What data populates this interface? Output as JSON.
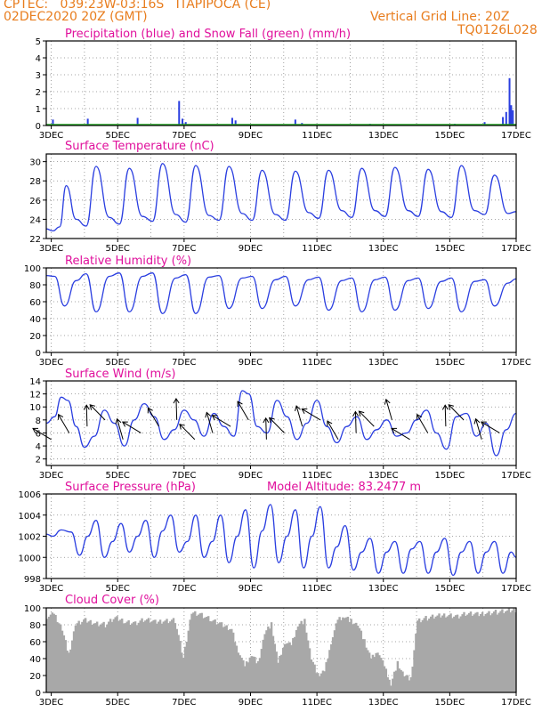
{
  "header": {
    "line1": "CPTEC:   039:23W-03:16S   ITAPIPOCA (CE)",
    "line2": "02DEC2020 20Z (GMT)",
    "grid_note": "Vertical Grid Line: 20Z",
    "code": "TQ0126L028"
  },
  "colors": {
    "header": "#e87d1e",
    "title": "#e0109c",
    "line": "#2a3ee0",
    "cloud": "#a8a8a8",
    "snow": "#22aa22"
  },
  "chart_data": [
    {
      "id": "precip",
      "type": "bar",
      "title": "Precipitation (blue) and Snow Fall (green) (mm/h)",
      "x_labels": [
        "3DEC",
        "5DEC",
        "7DEC",
        "9DEC",
        "11DEC",
        "13DEC",
        "15DEC",
        "17DEC"
      ],
      "x_range_days": [
        2.85,
        17.0
      ],
      "ylim": [
        0,
        5
      ],
      "yticks": [
        0,
        1,
        2,
        3,
        4,
        5
      ],
      "x": [
        3.05,
        4.1,
        5.6,
        6.85,
        6.95,
        7.05,
        8.45,
        8.55,
        10.35,
        10.55,
        12.6,
        15.15,
        16.05,
        16.6,
        16.7,
        16.8,
        16.85,
        16.9
      ],
      "values": [
        0.35,
        0.4,
        0.45,
        1.45,
        0.4,
        0.2,
        0.45,
        0.3,
        0.35,
        0.15,
        0.1,
        0.1,
        0.2,
        0.5,
        0.8,
        2.8,
        1.2,
        0.9
      ]
    },
    {
      "id": "temp",
      "type": "line",
      "title": "Surface Temperature (nC)",
      "x_labels": [
        "3DEC",
        "5DEC",
        "7DEC",
        "9DEC",
        "11DEC",
        "13DEC",
        "15DEC",
        "17DEC"
      ],
      "ylim": [
        22,
        30.8
      ],
      "yticks": [
        22,
        24,
        26,
        28,
        30
      ],
      "x": [
        2.85,
        3.05,
        3.25,
        3.45,
        3.75,
        4.05,
        4.35,
        4.75,
        5.05,
        5.35,
        5.75,
        6.05,
        6.35,
        6.75,
        7.05,
        7.35,
        7.75,
        8.05,
        8.35,
        8.75,
        9.05,
        9.35,
        9.75,
        10.05,
        10.35,
        10.75,
        11.05,
        11.35,
        11.75,
        12.05,
        12.35,
        12.75,
        13.05,
        13.35,
        13.75,
        14.05,
        14.35,
        14.75,
        15.05,
        15.35,
        15.75,
        16.05,
        16.35,
        16.75,
        17.0
      ],
      "values": [
        23.0,
        22.8,
        23.2,
        27.5,
        24.0,
        23.3,
        29.5,
        24.2,
        23.5,
        29.3,
        24.3,
        23.8,
        29.8,
        24.5,
        23.7,
        29.6,
        24.4,
        23.9,
        29.5,
        24.6,
        23.9,
        29.1,
        24.5,
        23.9,
        29.0,
        24.7,
        24.1,
        29.1,
        24.9,
        24.2,
        29.3,
        24.9,
        24.3,
        29.4,
        24.9,
        24.3,
        29.2,
        24.8,
        24.2,
        29.6,
        24.9,
        24.5,
        28.6,
        24.6,
        24.8
      ]
    },
    {
      "id": "rh",
      "type": "line",
      "title": "Relative Humidity (%)",
      "x_labels": [
        "3DEC",
        "5DEC",
        "7DEC",
        "9DEC",
        "11DEC",
        "13DEC",
        "15DEC",
        "17DEC"
      ],
      "ylim": [
        0,
        100
      ],
      "yticks": [
        0,
        20,
        40,
        60,
        80,
        100
      ],
      "x": [
        2.85,
        3.1,
        3.4,
        3.75,
        4.05,
        4.35,
        4.75,
        5.05,
        5.35,
        5.75,
        6.05,
        6.35,
        6.75,
        7.05,
        7.35,
        7.75,
        8.05,
        8.35,
        8.75,
        9.05,
        9.35,
        9.75,
        10.05,
        10.35,
        10.75,
        11.05,
        11.35,
        11.75,
        12.05,
        12.35,
        12.75,
        13.05,
        13.35,
        13.75,
        14.05,
        14.35,
        14.75,
        15.05,
        15.35,
        15.75,
        16.05,
        16.35,
        16.75,
        17.0
      ],
      "values": [
        91,
        90,
        55,
        85,
        93,
        48,
        90,
        94,
        48,
        90,
        94,
        46,
        88,
        92,
        46,
        89,
        91,
        52,
        88,
        90,
        52,
        86,
        90,
        55,
        86,
        89,
        50,
        85,
        88,
        48,
        86,
        89,
        50,
        85,
        88,
        52,
        84,
        88,
        48,
        84,
        86,
        55,
        82,
        87
      ]
    },
    {
      "id": "wind",
      "type": "line",
      "title": "Surface Wind (m/s)",
      "x_labels": [
        "3DEC",
        "5DEC",
        "7DEC",
        "9DEC",
        "11DEC",
        "13DEC",
        "15DEC",
        "17DEC"
      ],
      "ylim": [
        1,
        14
      ],
      "yticks": [
        2,
        4,
        6,
        8,
        10,
        12,
        14
      ],
      "x": [
        2.85,
        3.1,
        3.3,
        3.5,
        3.75,
        4.0,
        4.3,
        4.6,
        4.9,
        5.2,
        5.5,
        5.8,
        6.1,
        6.4,
        6.7,
        7.0,
        7.3,
        7.6,
        7.9,
        8.2,
        8.5,
        8.75,
        8.95,
        9.2,
        9.5,
        9.8,
        10.1,
        10.4,
        10.7,
        11.0,
        11.3,
        11.6,
        11.9,
        12.2,
        12.5,
        12.8,
        13.1,
        13.4,
        13.7,
        14.0,
        14.3,
        14.6,
        14.9,
        15.2,
        15.5,
        15.8,
        16.1,
        16.4,
        16.7,
        17.0
      ],
      "values": [
        7.5,
        8.5,
        11.5,
        11.0,
        7.0,
        3.8,
        5.5,
        9.5,
        7.5,
        4.0,
        8.0,
        10.5,
        8.5,
        5.0,
        6.5,
        9.5,
        8.0,
        5.5,
        9.0,
        7.0,
        5.5,
        12.5,
        12.0,
        7.0,
        6.0,
        11.0,
        8.5,
        5.0,
        7.5,
        11.0,
        7.0,
        4.5,
        7.0,
        8.5,
        5.0,
        6.5,
        8.0,
        5.5,
        6.0,
        8.0,
        9.5,
        6.0,
        3.5,
        8.5,
        9.0,
        5.5,
        7.5,
        2.5,
        6.5,
        9.0
      ],
      "vectors_note": "wind direction arrows overlaid"
    },
    {
      "id": "pressure",
      "type": "line",
      "title": "Surface Pressure (hPa)",
      "annotation": "Model Altitude: 83.2477 m",
      "x_labels": [
        "3DEC",
        "5DEC",
        "7DEC",
        "9DEC",
        "11DEC",
        "13DEC",
        "15DEC",
        "17DEC"
      ],
      "ylim": [
        998,
        1006
      ],
      "yticks": [
        998,
        1000,
        1002,
        1004,
        1006
      ],
      "x": [
        2.85,
        3.05,
        3.3,
        3.6,
        3.85,
        4.1,
        4.35,
        4.6,
        4.85,
        5.1,
        5.35,
        5.6,
        5.85,
        6.1,
        6.35,
        6.6,
        6.85,
        7.1,
        7.35,
        7.6,
        7.85,
        8.1,
        8.35,
        8.6,
        8.85,
        9.1,
        9.35,
        9.6,
        9.85,
        10.1,
        10.35,
        10.6,
        10.85,
        11.1,
        11.35,
        11.6,
        11.85,
        12.1,
        12.35,
        12.6,
        12.85,
        13.1,
        13.35,
        13.6,
        13.85,
        14.1,
        14.35,
        14.6,
        14.85,
        15.1,
        15.35,
        15.6,
        15.85,
        16.1,
        16.35,
        16.6,
        16.85,
        17.0
      ],
      "values": [
        1002.2,
        1002.0,
        1002.6,
        1002.4,
        1000.2,
        1002.0,
        1003.5,
        1000.0,
        1001.5,
        1003.2,
        1000.5,
        1002.0,
        1003.5,
        1000.0,
        1002.5,
        1004.0,
        1000.5,
        1001.5,
        1004.0,
        1000.0,
        1001.5,
        1004.0,
        999.5,
        1002.0,
        1004.5,
        999.0,
        1002.5,
        1005.0,
        999.5,
        1002.0,
        1004.5,
        999.0,
        1002.0,
        1004.8,
        999.0,
        1001.0,
        1003.0,
        998.8,
        1000.5,
        1001.8,
        998.5,
        1000.5,
        1001.5,
        998.5,
        1000.8,
        1001.5,
        998.5,
        1000.5,
        1001.8,
        998.3,
        1000.5,
        1001.5,
        998.5,
        1000.5,
        1001.5,
        998.5,
        1000.5,
        1000.0
      ]
    },
    {
      "id": "cloud",
      "type": "bar",
      "title": "Cloud Cover (%)",
      "x_labels": [
        "3DEC",
        "5DEC",
        "7DEC",
        "9DEC",
        "11DEC",
        "13DEC",
        "15DEC",
        "17DEC"
      ],
      "ylim": [
        0,
        100
      ],
      "yticks": [
        0,
        20,
        40,
        60,
        80,
        100
      ],
      "x": [
        2.85,
        3.05,
        3.3,
        3.5,
        3.7,
        4.0,
        4.3,
        4.6,
        4.9,
        5.2,
        5.5,
        5.8,
        6.1,
        6.4,
        6.7,
        6.95,
        7.2,
        7.5,
        7.8,
        8.1,
        8.4,
        8.6,
        8.8,
        9.0,
        9.2,
        9.4,
        9.6,
        9.8,
        10.0,
        10.2,
        10.4,
        10.6,
        10.8,
        11.0,
        11.2,
        11.4,
        11.6,
        11.8,
        12.0,
        12.2,
        12.4,
        12.6,
        12.8,
        13.0,
        13.2,
        13.4,
        13.6,
        13.8,
        14.0,
        14.3,
        14.6,
        14.9,
        15.2,
        15.5,
        15.8,
        16.1,
        16.4,
        16.7,
        17.0
      ],
      "values": [
        90,
        92,
        75,
        45,
        80,
        85,
        82,
        80,
        88,
        84,
        82,
        86,
        83,
        85,
        85,
        40,
        95,
        92,
        85,
        80,
        75,
        50,
        30,
        45,
        35,
        70,
        80,
        35,
        60,
        55,
        80,
        85,
        40,
        20,
        25,
        60,
        85,
        90,
        85,
        80,
        60,
        40,
        50,
        30,
        10,
        35,
        20,
        15,
        85,
        88,
        90,
        92,
        90,
        93,
        92,
        94,
        95,
        96,
        98
      ]
    }
  ]
}
